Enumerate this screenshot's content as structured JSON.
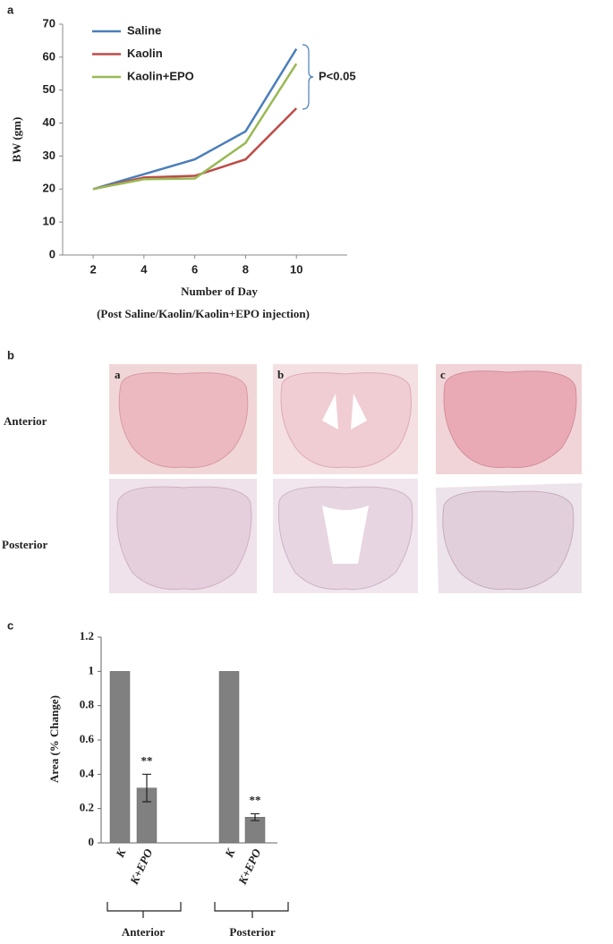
{
  "chart_data": [
    {
      "type": "line",
      "panel": "a",
      "x": [
        2,
        4,
        6,
        8,
        10
      ],
      "xlim": [
        0.8,
        12
      ],
      "xticks": [
        2,
        4,
        6,
        8,
        10
      ],
      "ylim": [
        0,
        70
      ],
      "yticks": [
        0,
        10,
        20,
        30,
        40,
        50,
        60,
        70
      ],
      "y_label": "BW (gm)",
      "x_label": "Number of Day",
      "x_sublabel": "(Post Saline/Kaolin/Kaolin+EPO injection)",
      "annotation": "P<0.05",
      "series": [
        {
          "name": "Saline",
          "color": "#4a7ebb",
          "values": [
            20,
            24.5,
            29,
            37.5,
            62.5
          ]
        },
        {
          "name": "Kaolin",
          "color": "#be4b48",
          "values": [
            20,
            23.5,
            24,
            29,
            44.5
          ]
        },
        {
          "name": "Kaolin+EPO",
          "color": "#98b954",
          "values": [
            20,
            23,
            23.2,
            34,
            58
          ]
        }
      ]
    },
    {
      "type": "bar",
      "panel": "c",
      "categories": [
        "K",
        "K+EPO",
        "K",
        "K+EPO"
      ],
      "groups": [
        "Anterior",
        "Posterior"
      ],
      "values": [
        1,
        0.32,
        1,
        0.15
      ],
      "errors": [
        null,
        0.08,
        null,
        0.02
      ],
      "significance_labels": [
        null,
        "**",
        null,
        "**"
      ],
      "color": "#808080",
      "ylim": [
        0,
        1.2
      ],
      "yticks": [
        0,
        0.2,
        0.4,
        0.6,
        0.8,
        1,
        1.2
      ],
      "y_label": "Area (% Change)"
    }
  ],
  "panel_b": {
    "label": "b",
    "columns": [
      "a",
      "b",
      "c"
    ],
    "rows": [
      "Anterior",
      "Posterior"
    ]
  }
}
